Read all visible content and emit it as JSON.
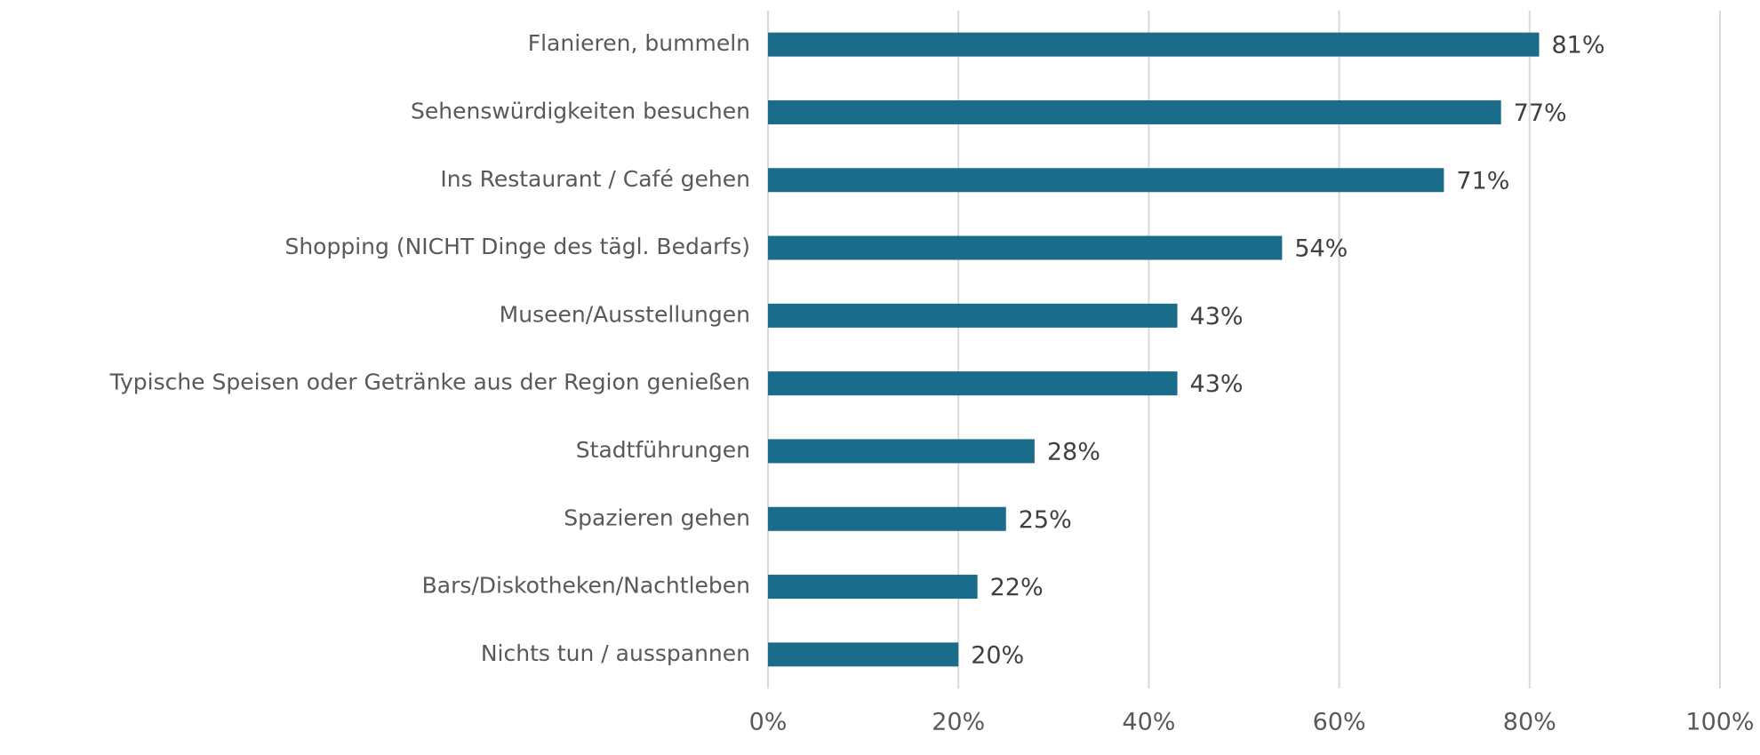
{
  "chart_data": {
    "type": "hbar",
    "categories": [
      "Flanieren, bummeln",
      "Sehenswürdigkeiten besuchen",
      "Ins Restaurant / Café gehen",
      "Shopping (NICHT Dinge des tägl. Bedarfs)",
      "Museen/Ausstellungen",
      "Typische Speisen oder Getränke aus der Region genießen",
      "Stadtführungen",
      "Spazieren gehen",
      "Bars/Diskotheken/Nachtleben",
      "Nichts tun / ausspannen"
    ],
    "values": [
      81,
      77,
      71,
      54,
      43,
      43,
      28,
      25,
      22,
      20
    ],
    "value_labels": [
      "81%",
      "77%",
      "71%",
      "54%",
      "43%",
      "43%",
      "28%",
      "25%",
      "22%",
      "20%"
    ],
    "color": "#1b6b8a",
    "xlim": [
      0,
      100
    ],
    "xticks": [
      {
        "value": 0,
        "label": "0%"
      },
      {
        "value": 20,
        "label": "20%"
      },
      {
        "value": 40,
        "label": "40%"
      },
      {
        "value": 60,
        "label": "60%"
      },
      {
        "value": 80,
        "label": "80%"
      },
      {
        "value": 100,
        "label": "100%"
      }
    ],
    "grid": true
  }
}
